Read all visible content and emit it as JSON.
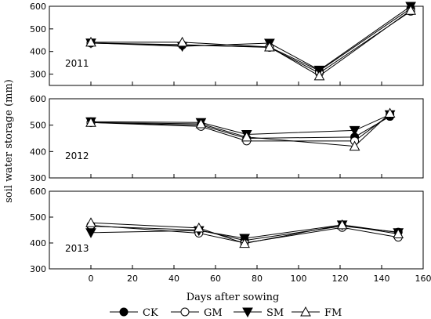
{
  "chart_data": {
    "type": "line",
    "xlabel": "Days after sowing",
    "ylabel": "soil water storage (mm)",
    "xlim": [
      -20,
      160
    ],
    "xticks": [
      0,
      20,
      40,
      60,
      80,
      100,
      120,
      140,
      160
    ],
    "legend": {
      "placement": "bottom",
      "entries": [
        "CK",
        "GM",
        "SM",
        "FM"
      ]
    },
    "panels": [
      {
        "label": "2011",
        "ylim": [
          250,
          600
        ],
        "yticks": [
          300,
          400,
          500,
          600
        ],
        "series": [
          {
            "name": "CK",
            "marker": "filled-circle",
            "x": [
              0,
              44,
              86,
              110,
              154
            ],
            "y": [
              437,
              428,
              420,
              315,
              590
            ]
          },
          {
            "name": "GM",
            "marker": "open-circle",
            "x": [
              0,
              44,
              86,
              110,
              154
            ],
            "y": [
              438,
              430,
              418,
              305,
              578
            ]
          },
          {
            "name": "SM",
            "marker": "filled-triangle-down",
            "x": [
              0,
              44,
              86,
              110,
              154
            ],
            "y": [
              438,
              423,
              437,
              318,
              600
            ]
          },
          {
            "name": "FM",
            "marker": "open-triangle-up",
            "x": [
              0,
              44,
              86,
              110,
              154
            ],
            "y": [
              441,
              441,
              420,
              292,
              582
            ]
          }
        ]
      },
      {
        "label": "2012",
        "ylim": [
          300,
          600
        ],
        "yticks": [
          300,
          400,
          500,
          600
        ],
        "series": [
          {
            "name": "CK",
            "marker": "filled-circle",
            "x": [
              0,
              53,
              75,
              127,
              144
            ],
            "y": [
              510,
              500,
              450,
              455,
              533
            ]
          },
          {
            "name": "GM",
            "marker": "open-circle",
            "x": [
              0,
              53,
              75,
              127,
              144
            ],
            "y": [
              510,
              495,
              440,
              440,
              540
            ]
          },
          {
            "name": "SM",
            "marker": "filled-triangle-down",
            "x": [
              0,
              53,
              75,
              127,
              144
            ],
            "y": [
              513,
              510,
              465,
              480,
              540
            ]
          },
          {
            "name": "FM",
            "marker": "open-triangle-up",
            "x": [
              0,
              53,
              75,
              127,
              144
            ],
            "y": [
              510,
              505,
              455,
              420,
              545
            ]
          }
        ]
      },
      {
        "label": "2013",
        "ylim": [
          300,
          600
        ],
        "yticks": [
          300,
          400,
          500,
          600
        ],
        "series": [
          {
            "name": "CK",
            "marker": "filled-circle",
            "x": [
              0,
              52,
              74,
              121,
              148
            ],
            "y": [
              465,
              450,
              410,
              465,
              442
            ]
          },
          {
            "name": "GM",
            "marker": "open-circle",
            "x": [
              0,
              52,
              74,
              121,
              148
            ],
            "y": [
              468,
              438,
              400,
              460,
              422
            ]
          },
          {
            "name": "SM",
            "marker": "filled-triangle-down",
            "x": [
              0,
              52,
              74,
              121,
              148
            ],
            "y": [
              440,
              448,
              418,
              470,
              440
            ]
          },
          {
            "name": "FM",
            "marker": "open-triangle-up",
            "x": [
              0,
              52,
              74,
              121,
              148
            ],
            "y": [
              478,
              458,
              398,
              470,
              435
            ]
          }
        ]
      }
    ]
  }
}
